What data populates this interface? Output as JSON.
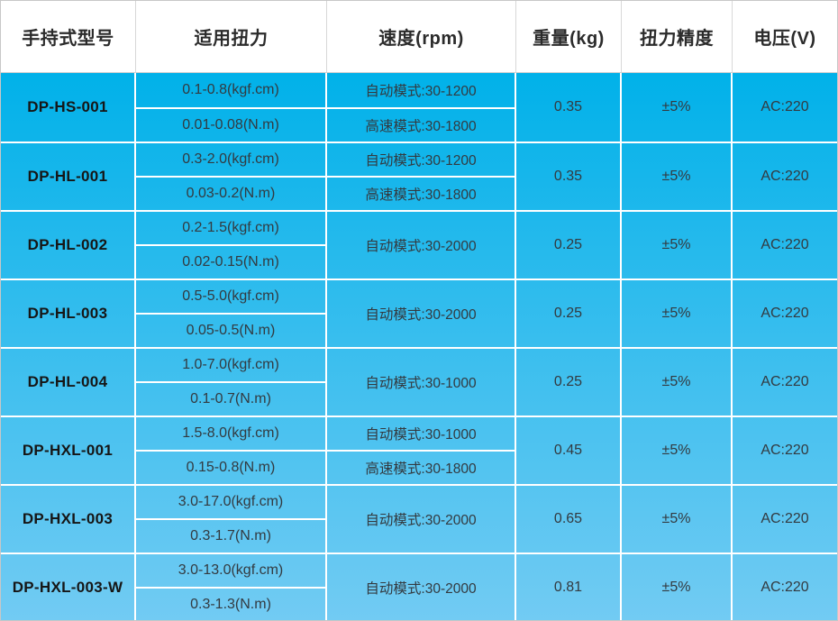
{
  "table": {
    "headers": [
      {
        "key": "model",
        "label": "手持式型号"
      },
      {
        "key": "torque",
        "label": "适用扭力"
      },
      {
        "key": "speed",
        "label": "速度(rpm)"
      },
      {
        "key": "weight",
        "label": "重量(kg)"
      },
      {
        "key": "accuracy",
        "label": "扭力精度"
      },
      {
        "key": "voltage",
        "label": "电压(V)"
      }
    ],
    "rows": [
      {
        "model": "DP-HS-001",
        "torque": [
          "0.1-0.8(kgf.cm)",
          "0.01-0.08(N.m)"
        ],
        "speed": [
          "自动模式:30-1200",
          "高速模式:30-1800"
        ],
        "weight": "0.35",
        "accuracy": "±5%",
        "voltage": "AC:220"
      },
      {
        "model": "DP-HL-001",
        "torque": [
          "0.3-2.0(kgf.cm)",
          "0.03-0.2(N.m)"
        ],
        "speed": [
          "自动模式:30-1200",
          "高速模式:30-1800"
        ],
        "weight": "0.35",
        "accuracy": "±5%",
        "voltage": "AC:220"
      },
      {
        "model": "DP-HL-002",
        "torque": [
          "0.2-1.5(kgf.cm)",
          "0.02-0.15(N.m)"
        ],
        "speed": [
          "自动模式:30-2000"
        ],
        "weight": "0.25",
        "accuracy": "±5%",
        "voltage": "AC:220"
      },
      {
        "model": "DP-HL-003",
        "torque": [
          "0.5-5.0(kgf.cm)",
          "0.05-0.5(N.m)"
        ],
        "speed": [
          "自动模式:30-2000"
        ],
        "weight": "0.25",
        "accuracy": "±5%",
        "voltage": "AC:220"
      },
      {
        "model": "DP-HL-004",
        "torque": [
          "1.0-7.0(kgf.cm)",
          "0.1-0.7(N.m)"
        ],
        "speed": [
          "自动模式:30-1000"
        ],
        "weight": "0.25",
        "accuracy": "±5%",
        "voltage": "AC:220"
      },
      {
        "model": "DP-HXL-001",
        "torque": [
          "1.5-8.0(kgf.cm)",
          "0.15-0.8(N.m)"
        ],
        "speed": [
          "自动模式:30-1000",
          "高速模式:30-1800"
        ],
        "weight": "0.45",
        "accuracy": "±5%",
        "voltage": "AC:220"
      },
      {
        "model": "DP-HXL-003",
        "torque": [
          "3.0-17.0(kgf.cm)",
          "0.3-1.7(N.m)"
        ],
        "speed": [
          "自动模式:30-2000"
        ],
        "weight": "0.65",
        "accuracy": "±5%",
        "voltage": "AC:220"
      },
      {
        "model": "DP-HXL-003-W",
        "torque": [
          "3.0-13.0(kgf.cm)",
          "0.3-1.3(N.m)"
        ],
        "speed": [
          "自动模式:30-2000"
        ],
        "weight": "0.81",
        "accuracy": "±5%",
        "voltage": "AC:220"
      }
    ]
  },
  "colors": {
    "body_gradient_top": "#00b1e9",
    "body_gradient_bottom": "#72cbf3",
    "header_background": "#ffffff",
    "grid_line": "#ffffff",
    "header_text": "#2b2b2b",
    "body_text": "#333a40"
  }
}
